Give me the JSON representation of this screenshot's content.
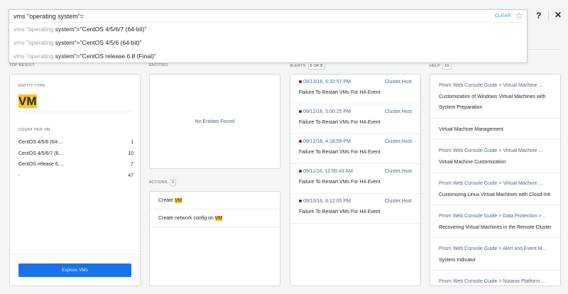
{
  "search": {
    "query": "vms \"operating system\"=",
    "clear_label": "CLEAR",
    "suggestions": [
      {
        "prefix": "vms \"operating",
        "rest": " system\"=\"CentOS 4/5/6/7 (64-bit)\""
      },
      {
        "prefix": "vms \"operating",
        "rest": " system\"=\"CentOS 4/5/6 (64-bit)\""
      },
      {
        "prefix": "vms \"operating",
        "rest": " system\"=\"CentOS release 6.8 (Final)\""
      }
    ]
  },
  "header": {
    "help_label": "?",
    "close_label": "✕"
  },
  "top_result": {
    "section_label": "TOP RESULT",
    "entity_type_label": "ENTITY TYPE",
    "entity_type": "VM",
    "count_label": "COUNT PER VM",
    "counts": [
      {
        "name": "CentOS 4/5/6 (64-...",
        "value": "1"
      },
      {
        "name": "CentOS 4/5/6/7 (6...",
        "value": "10"
      },
      {
        "name": "CentOS release 6....",
        "value": "7"
      },
      {
        "name": "-",
        "value": "47"
      }
    ],
    "button": "Explore VMs"
  },
  "entities": {
    "section_label": "ENTITIES",
    "empty": "No Entities Found"
  },
  "actions": {
    "section_label": "ACTIONS",
    "count": "2",
    "items": [
      {
        "text": "Create ",
        "highlight": "VM"
      },
      {
        "text": "Create network config on ",
        "highlight": "VM"
      }
    ]
  },
  "alerts": {
    "section_label": "ALERTS",
    "count": "5 OF 8",
    "severity_color": "#8b0f10",
    "items": [
      {
        "time": "09/13/16, 6:32:57 PM",
        "entity": "Cluster,Host",
        "title": "Failure To Restart VMs For HA Event"
      },
      {
        "time": "09/12/16, 5:00:25 PM",
        "entity": "Cluster,Host",
        "title": "Failure To Restart VMs For HA Event"
      },
      {
        "time": "09/12/16, 4:18:59 PM",
        "entity": "Cluster,Host",
        "title": "Failure To Restart VMs For HA Event"
      },
      {
        "time": "09/11/16, 12:00:43 AM",
        "entity": "Cluster,Host",
        "title": "Failure To Restart VMs For HA Event"
      },
      {
        "time": "09/10/16, 8:12:05 PM",
        "entity": "Cluster,Host",
        "title": "Failure To Restart VMs For HA Event"
      }
    ]
  },
  "help": {
    "section_label": "HELP",
    "count": "10",
    "items": [
      {
        "path": "Prism Web Console Guide > Virtual Machine ...",
        "title": "Customization of Windows Virtual Machines with System Preparation"
      },
      {
        "path": "",
        "title": "Virtual Machine Management"
      },
      {
        "path": "Prism Web Console Guide > Virtual Machine ...",
        "title": "Virtual Machine Customization"
      },
      {
        "path": "Prism Web Console Guide > Virtual Machine ...",
        "title": "Customizing Linux Virtual Machines with Cloud-Init"
      },
      {
        "path": "Prism Web Console Guide > Data Protection >...",
        "title": "Recovering Virtual Machines in the Remote Cluster"
      },
      {
        "path": "Prism Web Console Guide > Alert and Event M...",
        "title": "System Indicator"
      },
      {
        "path": "Prism Web Console Guide > Nutanix Platform ...",
        "title": ""
      }
    ]
  }
}
